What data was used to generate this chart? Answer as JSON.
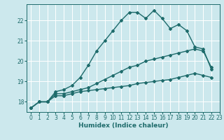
{
  "xlabel": "Humidex (Indice chaleur)",
  "bg_color": "#cce8ed",
  "grid_color": "#ffffff",
  "line_color": "#1e6b6b",
  "xlim": [
    -0.5,
    23
  ],
  "ylim": [
    17.5,
    22.8
  ],
  "yticks": [
    18,
    19,
    20,
    21,
    22
  ],
  "xticks": [
    0,
    1,
    2,
    3,
    4,
    5,
    6,
    7,
    8,
    9,
    10,
    11,
    12,
    13,
    14,
    15,
    16,
    17,
    18,
    19,
    20,
    21,
    22,
    23
  ],
  "series": [
    {
      "x": [
        0,
        1,
        2,
        3,
        4,
        5,
        6,
        7,
        8,
        9,
        10,
        11,
        12,
        13,
        14,
        15,
        16,
        17,
        18,
        19,
        20,
        21,
        22
      ],
      "y": [
        17.7,
        18.0,
        18.0,
        18.5,
        18.6,
        18.8,
        19.2,
        19.8,
        20.5,
        21.0,
        21.5,
        22.0,
        22.4,
        22.4,
        22.1,
        22.5,
        22.1,
        21.6,
        21.8,
        21.5,
        20.7,
        20.6,
        19.6
      ]
    },
    {
      "x": [
        0,
        1,
        2,
        3,
        4,
        5,
        6,
        7,
        8,
        9,
        10,
        11,
        12,
        13,
        14,
        15,
        16,
        17,
        18,
        19,
        20,
        21,
        22
      ],
      "y": [
        17.7,
        18.0,
        18.0,
        18.4,
        18.4,
        18.5,
        18.6,
        18.7,
        18.9,
        19.1,
        19.3,
        19.5,
        19.7,
        19.8,
        20.0,
        20.1,
        20.2,
        20.3,
        20.4,
        20.5,
        20.6,
        20.5,
        19.7
      ]
    },
    {
      "x": [
        0,
        1,
        2,
        3,
        4,
        5,
        6,
        7,
        8,
        9,
        10,
        11,
        12,
        13,
        14,
        15,
        16,
        17,
        18,
        19,
        20,
        21,
        22
      ],
      "y": [
        17.7,
        18.0,
        18.0,
        18.3,
        18.3,
        18.4,
        18.5,
        18.55,
        18.6,
        18.65,
        18.7,
        18.75,
        18.8,
        18.9,
        18.95,
        19.0,
        19.05,
        19.1,
        19.2,
        19.3,
        19.4,
        19.3,
        19.2
      ]
    }
  ],
  "marker": "D",
  "markersize": 2,
  "linewidth": 1.0,
  "tick_labelsize": 5.5,
  "xlabel_fontsize": 6.5
}
